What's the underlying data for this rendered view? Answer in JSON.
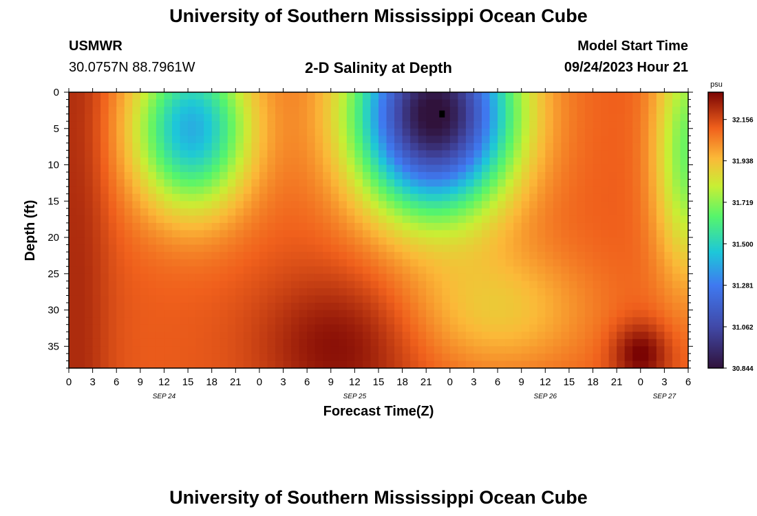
{
  "page": {
    "title_top": "University of Southern Mississippi Ocean Cube",
    "title_bottom": "University of Southern Mississippi Ocean Cube",
    "station": "USMWR",
    "coords": "30.0757N  88.7961W",
    "plot_title": "2-D Salinity at Depth",
    "start_label": "Model Start Time",
    "start_value": "09/24/2023 Hour 21"
  },
  "chart_data": {
    "type": "heatmap",
    "title": "2-D Salinity at Depth",
    "xlabel": "Forecast Time(Z)",
    "ylabel": "Depth (ft)",
    "x_ticks": [
      "0",
      "3",
      "6",
      "9",
      "12",
      "15",
      "18",
      "21",
      "0",
      "3",
      "6",
      "9",
      "12",
      "15",
      "18",
      "21",
      "0",
      "3",
      "6",
      "9",
      "12",
      "15",
      "18",
      "21",
      "0",
      "3",
      "6"
    ],
    "x_range_hours": [
      0,
      78
    ],
    "date_labels": [
      {
        "label": "SEP 24",
        "hour": 12
      },
      {
        "label": "SEP 25",
        "hour": 36
      },
      {
        "label": "SEP 26",
        "hour": 60
      },
      {
        "label": "SEP 27",
        "hour": 75
      }
    ],
    "y_ticks": [
      0,
      5,
      10,
      15,
      20,
      25,
      30,
      35
    ],
    "y_range_ft": [
      0,
      38
    ],
    "colorbar": {
      "unit": "psu",
      "ticks": [
        "32.156",
        "31.938",
        "31.719",
        "31.500",
        "31.281",
        "31.062",
        "30.844"
      ],
      "min": 30.844,
      "max": 32.3
    },
    "marker": {
      "hour": 47,
      "depth_ft": 3
    },
    "features": [
      {
        "desc": "fresh lens",
        "hour_center": 16,
        "depth_ft": 6,
        "salinity": 31.45
      },
      {
        "desc": "fresh lens",
        "hour_center": 47,
        "depth_ft": 3,
        "salinity": 30.85
      },
      {
        "desc": "salty bottom",
        "hour_center": 36,
        "depth_ft": 34,
        "salinity": 32.25
      },
      {
        "desc": "salty bottom",
        "hour_center": 72,
        "depth_ft": 36,
        "salinity": 32.3
      }
    ]
  }
}
